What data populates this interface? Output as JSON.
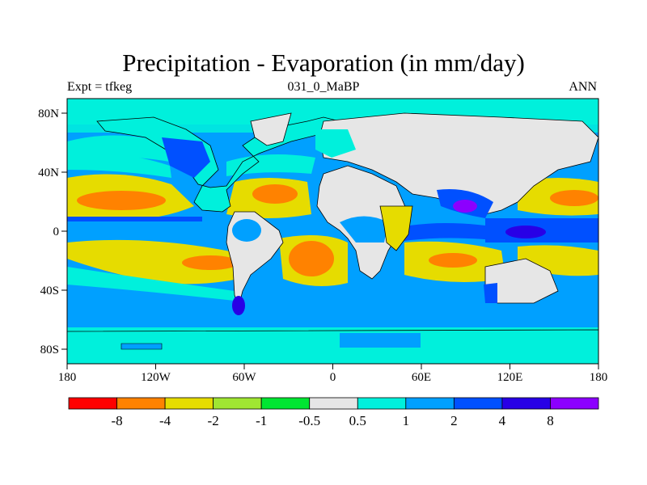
{
  "title": "Precipitation - Evaporation (in mm/day)",
  "subtitle_left": "Expt = tfkeg",
  "subtitle_center": "031_0_MaBP",
  "subtitle_right": "ANN",
  "map": {
    "projection": "cylindrical-equidistant",
    "lon_range": [
      -180,
      180
    ],
    "lat_range": [
      -90,
      90
    ],
    "lon_ticks": [
      "180",
      "120W",
      "60W",
      "0",
      "60E",
      "120E",
      "180"
    ],
    "lat_ticks": [
      "80N",
      "40N",
      "0",
      "40S",
      "80S"
    ]
  },
  "colorbar": {
    "labels": [
      "-8",
      "-4",
      "-2",
      "-1",
      "-0.5",
      "0.5",
      "1",
      "2",
      "4",
      "8"
    ],
    "colors": [
      "#ff0000",
      "#ff8200",
      "#e6dc00",
      "#a0e632",
      "#00e632",
      "#e6e6e6",
      "#00f0dc",
      "#00a0ff",
      "#0050ff",
      "#2800e6",
      "#8c00ff"
    ]
  },
  "colors": {
    "ocean_base": "#00a0ff",
    "land_base": "#e6e6e6",
    "coast": "#000000"
  }
}
